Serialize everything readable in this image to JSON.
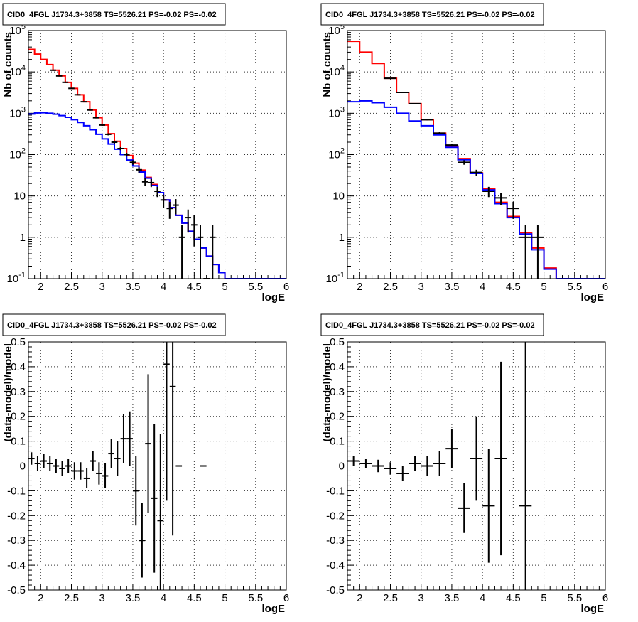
{
  "chart_data": [
    {
      "type": "histogram",
      "title": "CID0_4FGL J1734.3+3858 TS=5526.21 PS=-0.02 PS=-0.02",
      "xlabel": "logE",
      "ylabel": "Nb of counts",
      "xlim": [
        1.8,
        6.0
      ],
      "ylim": [
        0.1,
        100000
      ],
      "yscale": "log",
      "grid": true,
      "xticks": [
        "2",
        "2.5",
        "3",
        "3.5",
        "4",
        "4.5",
        "5",
        "5.5",
        "6"
      ],
      "yticks": [
        "10^{-1}",
        "1",
        "10",
        "10^{2}",
        "10^{3}",
        "10^{4}",
        "10^{5}"
      ],
      "series": [
        {
          "color": "#ff0000",
          "bin_edges": [
            1.8,
            1.9,
            2.0,
            2.1,
            2.2,
            2.3,
            2.4,
            2.5,
            2.6,
            2.7,
            2.8,
            2.9,
            3.0,
            3.1,
            3.2,
            3.3,
            3.4,
            3.5,
            3.6,
            3.7,
            3.8,
            3.9,
            4.0,
            4.1,
            4.2,
            4.3,
            4.4,
            4.5,
            4.6,
            4.7,
            4.8,
            4.9,
            5.0,
            5.1,
            5.2,
            5.3,
            5.4,
            5.5,
            5.6,
            5.7,
            5.8,
            5.9,
            6.0
          ],
          "values": [
            35000,
            27000,
            20000,
            15000,
            11000,
            8000,
            5600,
            4000,
            2800,
            1900,
            1200,
            780,
            520,
            320,
            210,
            140,
            95,
            62,
            42,
            28,
            19,
            12,
            8,
            5.2,
            3.4,
            2.2,
            1.4,
            0.9,
            0.55,
            0.35,
            0.22,
            0.14,
            0.1,
            0.1,
            0.1,
            0.1,
            0.1,
            0.1,
            0.1,
            0.1,
            0.1,
            0.1
          ]
        },
        {
          "color": "#0000ff",
          "bin_edges": [
            1.8,
            1.9,
            2.0,
            2.1,
            2.2,
            2.3,
            2.4,
            2.5,
            2.6,
            2.7,
            2.8,
            2.9,
            3.0,
            3.1,
            3.2,
            3.3,
            3.4,
            3.5,
            3.6,
            3.7,
            3.8,
            3.9,
            4.0,
            4.1,
            4.2,
            4.3,
            4.4,
            4.5,
            4.6,
            4.7,
            4.8,
            4.9,
            5.0,
            5.1,
            5.2,
            5.3,
            5.4,
            5.5,
            5.6,
            5.7,
            5.8,
            5.9,
            6.0
          ],
          "values": [
            960,
            1020,
            1030,
            1000,
            950,
            880,
            800,
            700,
            600,
            500,
            400,
            310,
            240,
            180,
            135,
            100,
            74,
            53,
            38,
            27,
            18,
            12,
            8,
            5.2,
            3.4,
            2.2,
            1.4,
            0.9,
            0.55,
            0.35,
            0.22,
            0.14,
            0.1,
            0.1,
            0.1,
            0.1,
            0.1,
            0.1,
            0.1,
            0.1,
            0.1,
            0.1
          ]
        }
      ],
      "points": {
        "color": "#000000",
        "x": [
          2.2,
          2.3,
          2.4,
          2.5,
          2.6,
          2.7,
          2.8,
          2.9,
          3.0,
          3.1,
          3.2,
          3.3,
          3.4,
          3.5,
          3.6,
          3.7,
          3.8,
          3.9,
          4.0,
          4.1,
          4.2,
          4.3,
          4.4,
          4.5,
          4.6,
          4.7,
          4.8
        ],
        "y": [
          11000,
          8000,
          5600,
          4000,
          2800,
          1900,
          1200,
          780,
          520,
          310,
          200,
          140,
          100,
          65,
          43,
          22,
          21,
          13,
          8,
          5,
          6,
          1,
          3,
          2,
          1,
          0.1,
          1
        ],
        "xerr": 0.05,
        "yerr": [
          105,
          89,
          75,
          63,
          53,
          44,
          35,
          28,
          23,
          18,
          14,
          12,
          10,
          8,
          6.5,
          4.7,
          4.6,
          3.6,
          2.8,
          2.2,
          2.4,
          1,
          1.7,
          1.4,
          1,
          0,
          1
        ]
      }
    },
    {
      "type": "histogram",
      "title": "CID0_4FGL J1734.3+3858 TS=5526.21 PS=-0.02 PS=-0.02",
      "xlabel": "logE",
      "ylabel": "Nb of counts",
      "xlim": [
        1.8,
        6.0
      ],
      "ylim": [
        0.1,
        100000
      ],
      "yscale": "log",
      "grid": true,
      "xticks": [
        "2",
        "2.5",
        "3",
        "3.5",
        "4",
        "4.5",
        "5",
        "5.5",
        "6"
      ],
      "yticks": [
        "10^{-1}",
        "1",
        "10",
        "10^{2}",
        "10^{3}",
        "10^{4}",
        "10^{5}"
      ],
      "series": [
        {
          "color": "#ff0000",
          "bin_edges": [
            1.8,
            2.0,
            2.2,
            2.4,
            2.6,
            2.8,
            3.0,
            3.2,
            3.4,
            3.6,
            3.8,
            4.0,
            4.2,
            4.4,
            4.6,
            4.8,
            5.0,
            5.2,
            5.4,
            5.6,
            5.8,
            6.0
          ],
          "values": [
            55000,
            30000,
            16000,
            7000,
            3200,
            1700,
            700,
            330,
            160,
            80,
            36,
            15,
            7,
            3.2,
            1.3,
            0.55,
            0.18,
            0.1,
            0.1,
            0.1,
            0.1
          ]
        },
        {
          "color": "#0000ff",
          "bin_edges": [
            1.8,
            2.0,
            2.2,
            2.4,
            2.6,
            2.8,
            3.0,
            3.2,
            3.4,
            3.6,
            3.8,
            4.0,
            4.2,
            4.4,
            4.6,
            4.8,
            5.0,
            5.2,
            5.4,
            5.6,
            5.8,
            6.0
          ],
          "values": [
            1900,
            2000,
            1800,
            1400,
            1000,
            650,
            500,
            300,
            150,
            75,
            35,
            14,
            6.5,
            3,
            1.2,
            0.5,
            0.17,
            0.1,
            0.1,
            0.1,
            0.1
          ]
        }
      ],
      "points": {
        "color": "#000000",
        "x": [
          2.5,
          2.7,
          2.9,
          3.1,
          3.3,
          3.5,
          3.7,
          3.9,
          4.1,
          4.3,
          4.5,
          4.7,
          4.9
        ],
        "y": [
          7000,
          3200,
          1700,
          700,
          330,
          170,
          65,
          37,
          13,
          9,
          5,
          1,
          1
        ],
        "xerr": 0.1,
        "yerr": [
          84,
          57,
          41,
          27,
          18,
          13,
          8,
          6,
          3.6,
          3,
          2.2,
          1,
          1
        ]
      }
    },
    {
      "type": "scatter",
      "title": "CID0_4FGL J1734.3+3858 TS=5526.21 PS=-0.02 PS=-0.02",
      "xlabel": "logE",
      "ylabel": "(data-model)/model",
      "xlim": [
        1.8,
        6.0
      ],
      "ylim": [
        -0.5,
        0.5
      ],
      "grid": true,
      "xticks": [
        "2",
        "2.5",
        "3",
        "3.5",
        "4",
        "4.5",
        "5",
        "5.5",
        "6"
      ],
      "yticks": [
        "-0.5",
        "-0.4",
        "-0.3",
        "-0.2",
        "-0.1",
        "0",
        "0.1",
        "0.2",
        "0.3",
        "0.4",
        "0.5"
      ],
      "points": {
        "color": "#000000",
        "x": [
          1.85,
          1.95,
          2.05,
          2.15,
          2.25,
          2.35,
          2.45,
          2.55,
          2.65,
          2.75,
          2.85,
          2.95,
          3.05,
          3.15,
          3.25,
          3.35,
          3.45,
          3.55,
          3.65,
          3.75,
          3.85,
          3.95,
          4.05,
          4.15,
          4.25,
          4.65
        ],
        "y": [
          0.03,
          0.01,
          0.02,
          0.01,
          0.0,
          -0.01,
          0.0,
          -0.02,
          -0.02,
          -0.05,
          0.02,
          -0.03,
          -0.04,
          0.05,
          0.03,
          0.11,
          0.11,
          -0.1,
          -0.3,
          0.09,
          -0.13,
          -0.22,
          0.41,
          0.32,
          0.0,
          0.0
        ],
        "xerr": 0.05,
        "yerr": [
          0.025,
          0.03,
          0.03,
          0.03,
          0.03,
          0.03,
          0.03,
          0.035,
          0.035,
          0.04,
          0.04,
          0.045,
          0.05,
          0.06,
          0.07,
          0.1,
          0.11,
          0.14,
          0.15,
          0.28,
          0.3,
          0.35,
          0.55,
          0.6,
          0,
          0
        ]
      }
    },
    {
      "type": "scatter",
      "title": "CID0_4FGL J1734.3+3858 TS=5526.21 PS=-0.02 PS=-0.02",
      "xlabel": "logE",
      "ylabel": "(data-model)/model",
      "xlim": [
        1.8,
        6.0
      ],
      "ylim": [
        -0.5,
        0.5
      ],
      "grid": true,
      "xticks": [
        "2",
        "2.5",
        "3",
        "3.5",
        "4",
        "4.5",
        "5",
        "5.5",
        "6"
      ],
      "yticks": [
        "-0.5",
        "-0.4",
        "-0.3",
        "-0.2",
        "-0.1",
        "0",
        "0.1",
        "0.2",
        "0.3",
        "0.4",
        "0.5"
      ],
      "points": {
        "color": "#000000",
        "x": [
          1.9,
          2.1,
          2.3,
          2.5,
          2.7,
          2.9,
          3.1,
          3.3,
          3.5,
          3.7,
          3.9,
          4.1,
          4.3,
          4.7
        ],
        "y": [
          0.02,
          0.01,
          0.0,
          -0.01,
          -0.03,
          0.01,
          0.0,
          0.01,
          0.07,
          -0.17,
          0.03,
          -0.16,
          0.03,
          -0.16
        ],
        "xerr": 0.1,
        "yerr": [
          0.02,
          0.02,
          0.025,
          0.025,
          0.03,
          0.03,
          0.04,
          0.05,
          0.08,
          0.1,
          0.17,
          0.23,
          0.39,
          0.66
        ]
      }
    }
  ]
}
